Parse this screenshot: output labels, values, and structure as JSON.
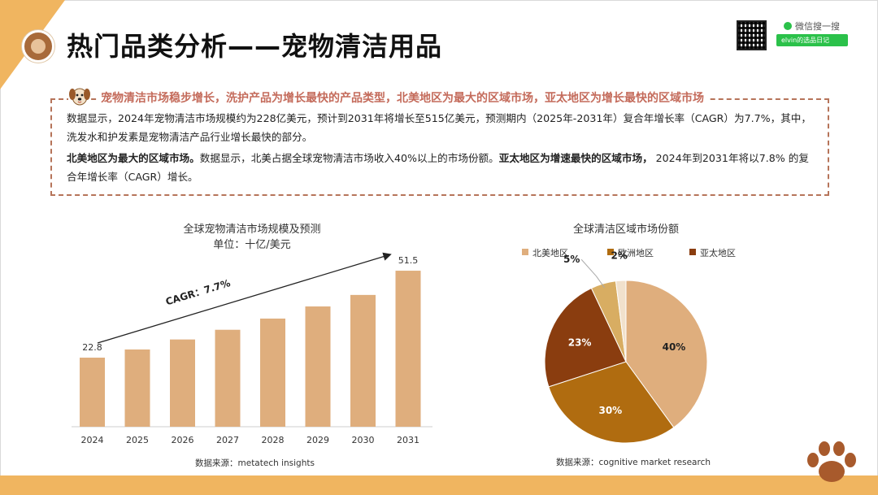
{
  "title": "热门品类分析——宠物清洁用品",
  "wechat": {
    "search_label": "微信搜一搜",
    "account": "elvin的选品日记"
  },
  "summary": {
    "headline": "宠物清洁市场稳步增长，洗护产品为增长最快的产品类型，北美地区为最大的区域市场，亚太地区为增长最快的区域市场",
    "p1": "数据显示，2024年宠物清洁市场规模约为228亿美元，预计到2031年将增长至515亿美元，预测期内（2025年-2031年）复合年增长率（CAGR）为7.7%，其中，洗发水和护发素是宠物清洁产品行业增长最快的部分。",
    "p2_bold1": "北美地区为最大的区域市场。",
    "p2_text1": "数据显示，北美占据全球宠物清洁市场收入40%以上的市场份额。",
    "p2_bold2": "亚太地区为增速最快的区域市场，",
    "p2_text2": " 2024年到2031年将以7.8% 的复合年增长率（CAGR）增长。"
  },
  "bar_chart": {
    "title": "全球宠物清洁市场规模及预测",
    "subtitle": "单位：十亿/美元",
    "annotation": "CAGR：7.7%",
    "source": "数据来源：metatech insights",
    "color": "#dfae7d"
  },
  "pie_chart": {
    "title": "全球清洁区域市场份额",
    "source": "数据来源：cognitive market research"
  },
  "chart_data": [
    {
      "type": "bar",
      "title": "全球宠物清洁市场规模及预测",
      "subtitle": "单位：十亿/美元",
      "categories": [
        "2024",
        "2025",
        "2026",
        "2027",
        "2028",
        "2029",
        "2030",
        "2031"
      ],
      "values": [
        22.8,
        25.5,
        28.8,
        32.0,
        35.7,
        39.7,
        43.5,
        51.5
      ],
      "data_labels": {
        "2024": "22.8",
        "2031": "51.5"
      },
      "annotation": "CAGR：7.7%",
      "ylim": [
        0,
        55
      ],
      "grid": false
    },
    {
      "type": "pie",
      "title": "全球清洁区域市场份额",
      "legend": [
        "北美地区",
        "欧洲地区",
        "亚太地区"
      ],
      "legend_position": "top",
      "slices": [
        {
          "label": "北美地区",
          "value": 40,
          "text": "40%",
          "color": "#dfae7d"
        },
        {
          "label": "欧洲地区",
          "value": 30,
          "text": "30%",
          "color": "#b06c10"
        },
        {
          "label": "亚太地区",
          "value": 23,
          "text": "23%",
          "color": "#8a3d0f"
        },
        {
          "label": "",
          "value": 5,
          "text": "5%",
          "color": "#d8ad62"
        },
        {
          "label": "",
          "value": 2,
          "text": "2%",
          "color": "#f1e1cc"
        }
      ]
    }
  ]
}
